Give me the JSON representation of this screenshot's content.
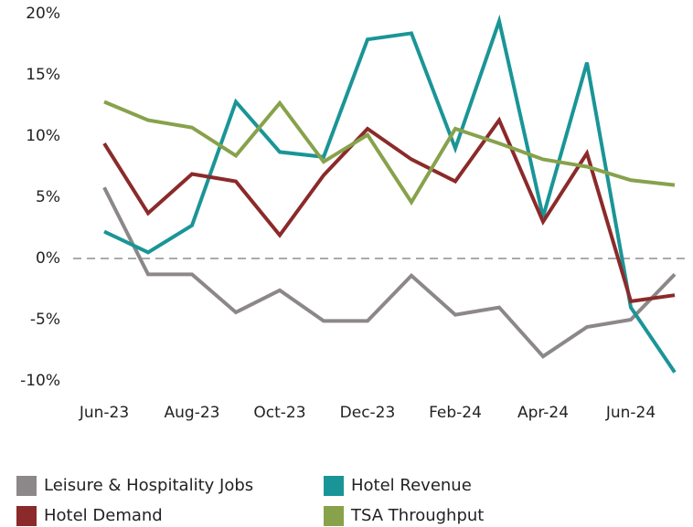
{
  "chart_data": {
    "type": "line",
    "categories": [
      "Jun-23",
      null,
      "Aug-23",
      null,
      "Oct-23",
      null,
      "Dec-23",
      null,
      "Feb-24",
      null,
      "Apr-24",
      null,
      "Jun-24",
      null
    ],
    "series": [
      {
        "name": "Leisure & Hospitality Jobs",
        "color": "#8c8789",
        "values": [
          5.8,
          -1.3,
          -1.3,
          -4.4,
          -2.6,
          -5.1,
          -5.1,
          -1.4,
          -4.6,
          -4.0,
          -8.0,
          -5.6,
          -5.0,
          -1.3
        ]
      },
      {
        "name": "Hotel Revenue",
        "color": "#1a9597",
        "values": [
          2.2,
          0.5,
          2.7,
          12.8,
          8.7,
          8.3,
          17.9,
          18.4,
          9.0,
          19.4,
          3.4,
          16.0,
          -4.0,
          -9.3
        ]
      },
      {
        "name": "Hotel Demand",
        "color": "#8b2a2a",
        "values": [
          9.4,
          3.7,
          6.9,
          6.3,
          1.9,
          6.8,
          10.6,
          8.1,
          6.3,
          11.3,
          3.0,
          8.6,
          -3.5,
          -3.0
        ]
      },
      {
        "name": "TSA Throughput",
        "color": "#87a24b",
        "values": [
          12.8,
          11.3,
          10.7,
          8.4,
          12.7,
          7.9,
          10.1,
          4.6,
          10.6,
          9.4,
          8.1,
          7.5,
          6.4,
          6.0
        ]
      }
    ],
    "ylim": [
      -10,
      20
    ],
    "yticks": [
      {
        "value": -10,
        "label": "-10%"
      },
      {
        "value": -5,
        "label": "-5%"
      },
      {
        "value": 0,
        "label": "0%"
      },
      {
        "value": 5,
        "label": "5%"
      },
      {
        "value": 10,
        "label": "10%"
      },
      {
        "value": 15,
        "label": "15%"
      },
      {
        "value": 20,
        "label": "20%"
      }
    ],
    "grid": false,
    "zero_line": true,
    "legend": "bottom"
  }
}
